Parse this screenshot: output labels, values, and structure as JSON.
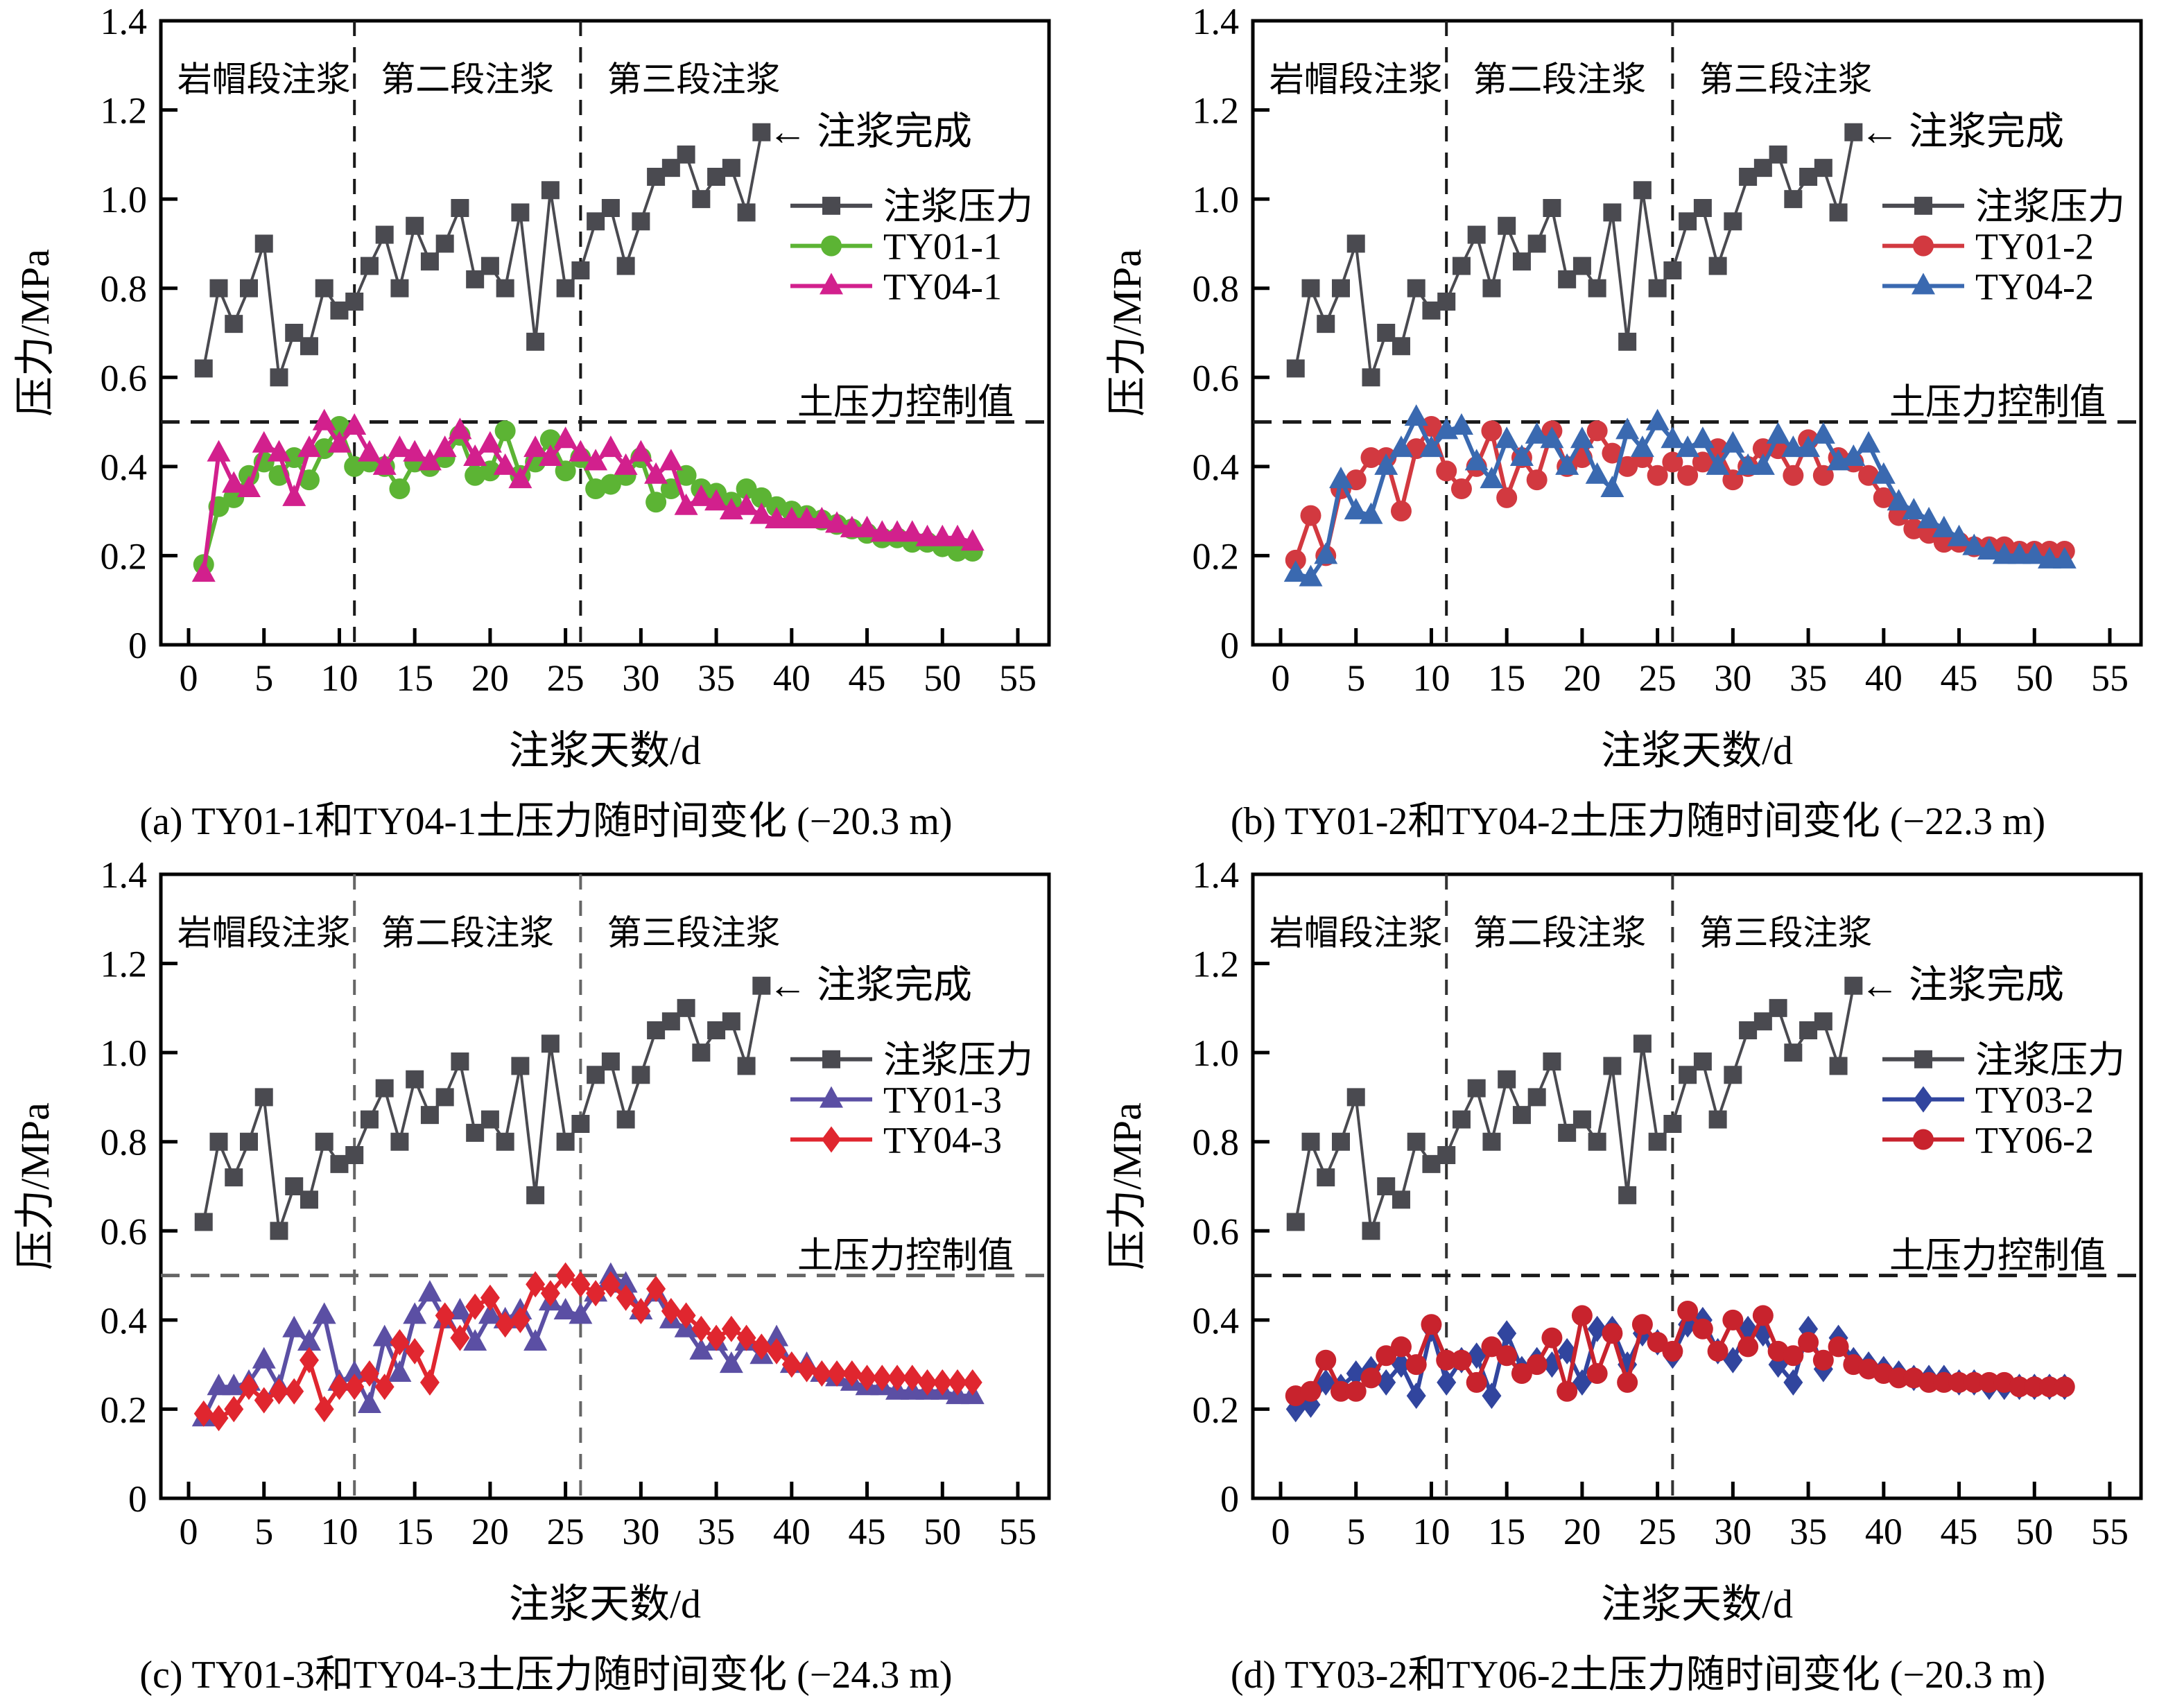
{
  "shared": {
    "xlabel": "注浆天数/d",
    "ylabel": "压力/MPa",
    "stage_labels": [
      "岩帽段注浆",
      "第二段注浆",
      "第三段注浆"
    ],
    "stage_boundaries_days": [
      11,
      26
    ],
    "control_line_label": "土压力控制值",
    "control_value_mpa": 0.5,
    "completion_annotation": "← 注浆完成",
    "yticks": [
      "0",
      "0.2",
      "0.4",
      "0.6",
      "0.8",
      "1.0",
      "1.2",
      "1.4"
    ],
    "xticks": [
      0,
      5,
      10,
      15,
      20,
      25,
      30,
      35,
      40,
      45,
      50,
      55
    ],
    "ylim": [
      0,
      1.4
    ],
    "xlim_days": [
      0,
      55
    ],
    "axis_color": "#000000"
  },
  "chart_data": [
    {
      "type": "line",
      "caption": "(a) TY01-1和TY04-1土压力随时间变化 (−20.3 m)",
      "xlabel": "注浆天数/d",
      "ylabel": "压力/MPa",
      "ylim": [
        0,
        1.4
      ],
      "stage_line_color": "#1a1a1a",
      "control_line_color": "#1a1a1a",
      "series": [
        {
          "name": "注浆压力",
          "marker": "square",
          "color": "#4a4a50",
          "start_day": 1,
          "values": [
            0.62,
            0.8,
            0.72,
            0.8,
            0.9,
            0.6,
            0.7,
            0.67,
            0.8,
            0.75,
            0.77,
            0.85,
            0.92,
            0.8,
            0.94,
            0.86,
            0.9,
            0.98,
            0.82,
            0.85,
            0.8,
            0.97,
            0.68,
            1.02,
            0.8,
            0.84,
            0.95,
            0.98,
            0.85,
            0.95,
            1.05,
            1.07,
            1.1,
            1.0,
            1.05,
            1.07,
            0.97,
            1.15
          ]
        },
        {
          "name": "TY01-1",
          "marker": "circle",
          "color": "#5cb434",
          "start_day": 1,
          "values": [
            0.18,
            0.31,
            0.33,
            0.38,
            0.41,
            0.38,
            0.42,
            0.37,
            0.44,
            0.49,
            0.4,
            0.41,
            0.4,
            0.35,
            0.41,
            0.4,
            0.42,
            0.47,
            0.38,
            0.39,
            0.48,
            0.38,
            0.41,
            0.46,
            0.39,
            0.42,
            0.35,
            0.36,
            0.38,
            0.42,
            0.32,
            0.35,
            0.38,
            0.35,
            0.34,
            0.32,
            0.35,
            0.33,
            0.31,
            0.3,
            0.29,
            0.28,
            0.27,
            0.26,
            0.25,
            0.24,
            0.24,
            0.23,
            0.23,
            0.22,
            0.21,
            0.21
          ]
        },
        {
          "name": "TY04-1",
          "marker": "triangle",
          "color": "#d2208d",
          "start_day": 1,
          "values": [
            0.16,
            0.43,
            0.36,
            0.35,
            0.45,
            0.43,
            0.33,
            0.44,
            0.5,
            0.45,
            0.49,
            0.43,
            0.4,
            0.44,
            0.43,
            0.41,
            0.44,
            0.48,
            0.42,
            0.45,
            0.4,
            0.37,
            0.44,
            0.42,
            0.46,
            0.43,
            0.41,
            0.44,
            0.4,
            0.43,
            0.38,
            0.41,
            0.31,
            0.33,
            0.32,
            0.3,
            0.31,
            0.29,
            0.28,
            0.28,
            0.28,
            0.28,
            0.27,
            0.26,
            0.26,
            0.25,
            0.25,
            0.25,
            0.24,
            0.24,
            0.24,
            0.23
          ]
        }
      ]
    },
    {
      "type": "line",
      "caption": "(b) TY01-2和TY04-2土压力随时间变化 (−22.3 m)",
      "xlabel": "注浆天数/d",
      "ylabel": "压力/MPa",
      "ylim": [
        0,
        1.4
      ],
      "stage_line_color": "#1a1a1a",
      "control_line_color": "#1a1a1a",
      "series": [
        {
          "name": "注浆压力",
          "marker": "square",
          "color": "#4a4a50",
          "start_day": 1,
          "values": [
            0.62,
            0.8,
            0.72,
            0.8,
            0.9,
            0.6,
            0.7,
            0.67,
            0.8,
            0.75,
            0.77,
            0.85,
            0.92,
            0.8,
            0.94,
            0.86,
            0.9,
            0.98,
            0.82,
            0.85,
            0.8,
            0.97,
            0.68,
            1.02,
            0.8,
            0.84,
            0.95,
            0.98,
            0.85,
            0.95,
            1.05,
            1.07,
            1.1,
            1.0,
            1.05,
            1.07,
            0.97,
            1.15
          ]
        },
        {
          "name": "TY01-2",
          "marker": "circle",
          "color": "#d23940",
          "start_day": 1,
          "values": [
            0.19,
            0.29,
            0.2,
            0.35,
            0.37,
            0.42,
            0.42,
            0.3,
            0.44,
            0.49,
            0.39,
            0.35,
            0.4,
            0.48,
            0.33,
            0.42,
            0.37,
            0.48,
            0.4,
            0.42,
            0.48,
            0.43,
            0.4,
            0.42,
            0.38,
            0.41,
            0.38,
            0.41,
            0.44,
            0.37,
            0.4,
            0.44,
            0.44,
            0.38,
            0.46,
            0.38,
            0.42,
            0.41,
            0.38,
            0.33,
            0.29,
            0.26,
            0.25,
            0.23,
            0.23,
            0.22,
            0.22,
            0.22,
            0.21,
            0.21,
            0.21,
            0.21
          ]
        },
        {
          "name": "TY04-2",
          "marker": "triangle",
          "color": "#3a69b0",
          "start_day": 1,
          "values": [
            0.16,
            0.15,
            0.2,
            0.37,
            0.3,
            0.29,
            0.4,
            0.44,
            0.51,
            0.44,
            0.48,
            0.49,
            0.41,
            0.37,
            0.46,
            0.42,
            0.47,
            0.46,
            0.4,
            0.46,
            0.38,
            0.35,
            0.48,
            0.44,
            0.5,
            0.46,
            0.44,
            0.46,
            0.4,
            0.45,
            0.4,
            0.4,
            0.47,
            0.44,
            0.44,
            0.47,
            0.41,
            0.42,
            0.45,
            0.38,
            0.32,
            0.3,
            0.28,
            0.26,
            0.24,
            0.22,
            0.21,
            0.2,
            0.2,
            0.2,
            0.19,
            0.19
          ]
        }
      ]
    },
    {
      "type": "line",
      "caption": "(c) TY01-3和TY04-3土压力随时间变化 (−24.3 m)",
      "xlabel": "注浆天数/d",
      "ylabel": "压力/MPa",
      "ylim": [
        0,
        1.4
      ],
      "stage_line_color": "#666666",
      "control_line_color": "#666666",
      "series": [
        {
          "name": "注浆压力",
          "marker": "square",
          "color": "#4a4a50",
          "start_day": 1,
          "values": [
            0.62,
            0.8,
            0.72,
            0.8,
            0.9,
            0.6,
            0.7,
            0.67,
            0.8,
            0.75,
            0.77,
            0.85,
            0.92,
            0.8,
            0.94,
            0.86,
            0.9,
            0.98,
            0.82,
            0.85,
            0.8,
            0.97,
            0.68,
            1.02,
            0.8,
            0.84,
            0.95,
            0.98,
            0.85,
            0.95,
            1.05,
            1.07,
            1.1,
            1.0,
            1.05,
            1.07,
            0.97,
            1.15
          ]
        },
        {
          "name": "TY01-3",
          "marker": "triangle",
          "color": "#5b4fa4",
          "start_day": 1,
          "values": [
            0.18,
            0.25,
            0.25,
            0.26,
            0.31,
            0.25,
            0.38,
            0.35,
            0.41,
            0.26,
            0.28,
            0.21,
            0.36,
            0.28,
            0.41,
            0.46,
            0.4,
            0.42,
            0.35,
            0.41,
            0.4,
            0.42,
            0.35,
            0.44,
            0.42,
            0.41,
            0.46,
            0.5,
            0.48,
            0.42,
            0.46,
            0.4,
            0.38,
            0.33,
            0.35,
            0.3,
            0.35,
            0.32,
            0.36,
            0.3,
            0.3,
            0.28,
            0.27,
            0.26,
            0.25,
            0.25,
            0.24,
            0.24,
            0.24,
            0.24,
            0.23,
            0.23
          ]
        },
        {
          "name": "TY04-3",
          "marker": "diamond",
          "color": "#e0262f",
          "start_day": 1,
          "values": [
            0.19,
            0.18,
            0.2,
            0.25,
            0.22,
            0.24,
            0.24,
            0.31,
            0.2,
            0.25,
            0.25,
            0.28,
            0.25,
            0.35,
            0.33,
            0.26,
            0.41,
            0.36,
            0.43,
            0.45,
            0.39,
            0.4,
            0.48,
            0.46,
            0.5,
            0.48,
            0.46,
            0.48,
            0.45,
            0.42,
            0.47,
            0.42,
            0.41,
            0.38,
            0.36,
            0.38,
            0.36,
            0.34,
            0.33,
            0.3,
            0.29,
            0.28,
            0.28,
            0.28,
            0.27,
            0.27,
            0.27,
            0.27,
            0.26,
            0.26,
            0.26,
            0.26
          ]
        }
      ]
    },
    {
      "type": "line",
      "caption": "(d) TY03-2和TY06-2土压力随时间变化 (−20.3 m)",
      "xlabel": "注浆天数/d",
      "ylabel": "压力/MPa",
      "ylim": [
        0,
        1.4
      ],
      "stage_line_color": "#333333",
      "control_line_color": "#1a1a1a",
      "series": [
        {
          "name": "注浆压力",
          "marker": "square",
          "color": "#4a4a50",
          "start_day": 1,
          "values": [
            0.62,
            0.8,
            0.72,
            0.8,
            0.9,
            0.6,
            0.7,
            0.67,
            0.8,
            0.75,
            0.77,
            0.85,
            0.92,
            0.8,
            0.94,
            0.86,
            0.9,
            0.98,
            0.82,
            0.85,
            0.8,
            0.97,
            0.68,
            1.02,
            0.8,
            0.84,
            0.95,
            0.98,
            0.85,
            0.95,
            1.05,
            1.07,
            1.1,
            1.0,
            1.05,
            1.07,
            0.97,
            1.15
          ]
        },
        {
          "name": "TY03-2",
          "marker": "diamond",
          "color": "#31459e",
          "start_day": 1,
          "values": [
            0.2,
            0.21,
            0.26,
            0.25,
            0.28,
            0.29,
            0.26,
            0.3,
            0.23,
            0.38,
            0.26,
            0.31,
            0.32,
            0.23,
            0.37,
            0.29,
            0.31,
            0.3,
            0.33,
            0.26,
            0.38,
            0.38,
            0.3,
            0.37,
            0.35,
            0.32,
            0.39,
            0.4,
            0.33,
            0.31,
            0.38,
            0.37,
            0.3,
            0.26,
            0.38,
            0.29,
            0.36,
            0.31,
            0.3,
            0.29,
            0.28,
            0.27,
            0.27,
            0.27,
            0.26,
            0.26,
            0.25,
            0.25,
            0.25,
            0.25,
            0.25,
            0.25
          ]
        },
        {
          "name": "TY06-2",
          "marker": "circle",
          "color": "#c8232d",
          "start_day": 1,
          "values": [
            0.23,
            0.24,
            0.31,
            0.24,
            0.24,
            0.27,
            0.32,
            0.34,
            0.3,
            0.39,
            0.31,
            0.31,
            0.26,
            0.34,
            0.32,
            0.28,
            0.3,
            0.36,
            0.24,
            0.41,
            0.28,
            0.37,
            0.26,
            0.39,
            0.35,
            0.33,
            0.42,
            0.38,
            0.33,
            0.4,
            0.34,
            0.41,
            0.33,
            0.32,
            0.35,
            0.31,
            0.34,
            0.3,
            0.29,
            0.28,
            0.27,
            0.27,
            0.26,
            0.26,
            0.26,
            0.26,
            0.26,
            0.26,
            0.25,
            0.25,
            0.25,
            0.25
          ]
        }
      ]
    }
  ]
}
